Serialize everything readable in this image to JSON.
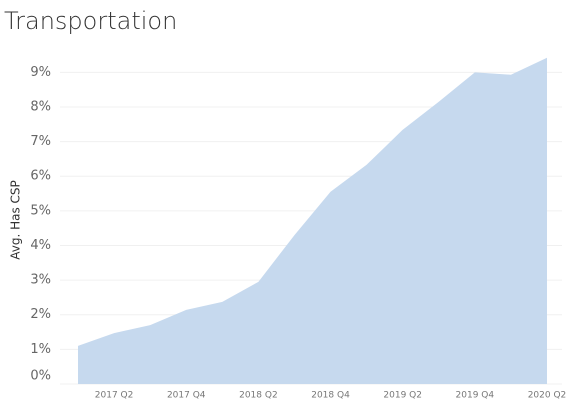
{
  "chart_data": {
    "type": "area",
    "title": "Transportation",
    "y_label": "Avg. Has CSP",
    "categories": [
      null,
      "2017 Q2",
      null,
      "2017 Q4",
      null,
      "2018 Q2",
      null,
      "2018 Q4",
      null,
      "2019 Q2",
      null,
      "2019 Q4",
      null,
      "2020 Q2"
    ],
    "values": [
      1.1,
      1.47,
      1.7,
      2.14,
      2.37,
      2.95,
      4.3,
      5.55,
      6.33,
      7.34,
      8.15,
      9.0,
      8.93,
      9.42
    ],
    "color": "#c6d9ee",
    "ylim": [
      0,
      9.5
    ],
    "yticks": [
      {
        "value": 0,
        "label": "0%"
      },
      {
        "value": 1,
        "label": "1%"
      },
      {
        "value": 2,
        "label": "2%"
      },
      {
        "value": 3,
        "label": "3%"
      },
      {
        "value": 4,
        "label": "4%"
      },
      {
        "value": 5,
        "label": "5%"
      },
      {
        "value": 6,
        "label": "6%"
      },
      {
        "value": 7,
        "label": "7%"
      },
      {
        "value": 8,
        "label": "8%"
      },
      {
        "value": 9,
        "label": "9%"
      }
    ],
    "grid": true
  }
}
